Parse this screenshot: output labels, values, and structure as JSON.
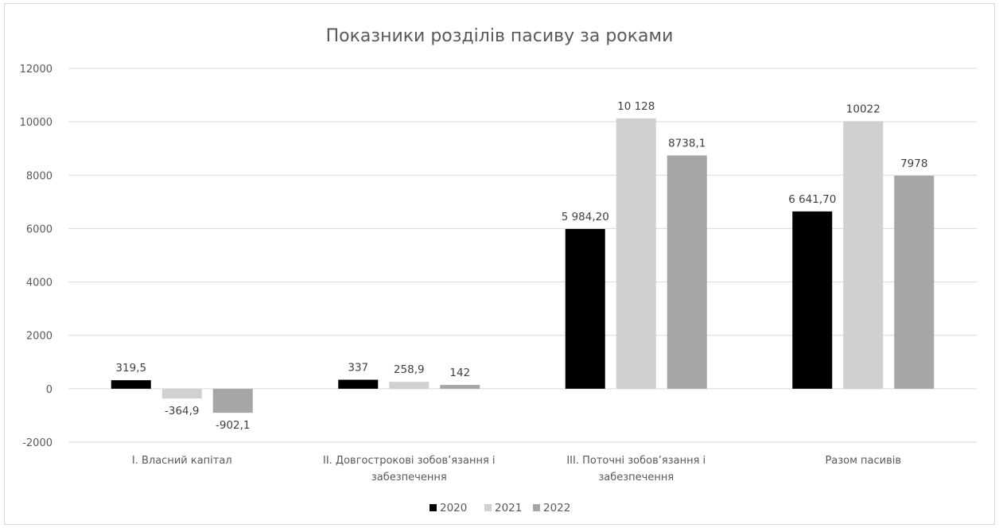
{
  "chart_data": {
    "type": "bar",
    "title": "Показники розділів пасиву за роками",
    "categories": [
      [
        "І. Власний капітал"
      ],
      [
        "ІІ. Довгострокові зобов’язання і",
        "забезпечення"
      ],
      [
        "ІІІ. Поточні зобов’язання і",
        "забезпечення"
      ],
      [
        "Разом пасивів"
      ]
    ],
    "series": [
      {
        "name": "2020",
        "color": "#000000",
        "values": [
          319.5,
          337,
          5984.2,
          6641.7
        ],
        "labels": [
          "319,5",
          "337",
          "5 984,20",
          "6 641,70"
        ]
      },
      {
        "name": "2021",
        "color": "#d0d0d0",
        "values": [
          -364.9,
          258.9,
          10128,
          10022
        ],
        "labels": [
          "-364,9",
          "258,9",
          "10 128",
          "10022"
        ]
      },
      {
        "name": "2022",
        "color": "#a6a6a6",
        "values": [
          -902.1,
          142,
          8738.1,
          7978
        ],
        "labels": [
          "-902,1",
          "142",
          "8738,1",
          "7978"
        ]
      }
    ],
    "ylim": [
      -2000,
      12000
    ],
    "yticks": [
      -2000,
      0,
      2000,
      4000,
      6000,
      8000,
      10000,
      12000
    ],
    "grid": true,
    "legend": "bottom"
  }
}
